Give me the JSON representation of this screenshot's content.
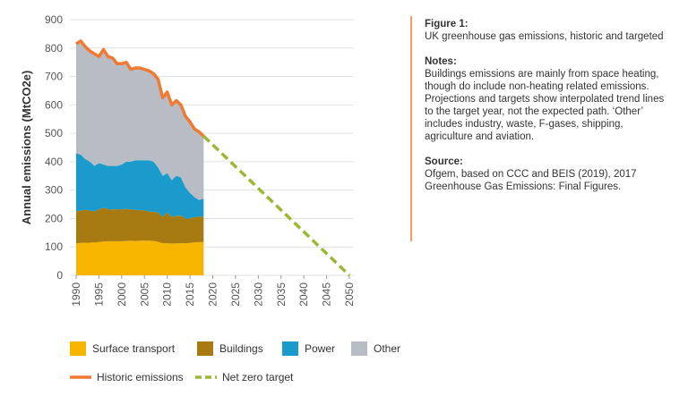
{
  "chart_data": {
    "type": "area",
    "y_label": "Annual emissions (MtCO2e)",
    "x": [
      1990,
      1991,
      1992,
      1993,
      1994,
      1995,
      1996,
      1997,
      1998,
      1999,
      2000,
      2001,
      2002,
      2003,
      2004,
      2005,
      2006,
      2007,
      2008,
      2009,
      2010,
      2011,
      2012,
      2013,
      2014,
      2015,
      2016,
      2017,
      2018
    ],
    "series": [
      {
        "name": "Surface transport",
        "color": "#f7b500",
        "stacked": true,
        "values": [
          113,
          114,
          115,
          115,
          116,
          117,
          119,
          120,
          120,
          120,
          120,
          121,
          122,
          121,
          122,
          122,
          122,
          121,
          118,
          113,
          113,
          112,
          112,
          113,
          113,
          114,
          116,
          117,
          117
        ]
      },
      {
        "name": "Buildings",
        "color": "#a87a12",
        "stacked": true,
        "values": [
          112,
          114,
          115,
          113,
          109,
          115,
          119,
          113,
          112,
          113,
          112,
          113,
          110,
          109,
          108,
          106,
          103,
          102,
          104,
          92,
          109,
          93,
          98,
          97,
          87,
          86,
          89,
          90,
          88
        ]
      },
      {
        "name": "Power",
        "color": "#1a9bcc",
        "stacked": true,
        "values": [
          205,
          197,
          180,
          172,
          160,
          163,
          152,
          152,
          153,
          152,
          158,
          166,
          168,
          175,
          175,
          177,
          180,
          177,
          158,
          145,
          138,
          130,
          140,
          135,
          110,
          90,
          70,
          58,
          65
        ]
      },
      {
        "name": "Other",
        "color": "#b8bcc4",
        "stacked": true,
        "values": [
          385,
          400,
          395,
          390,
          395,
          375,
          405,
          385,
          380,
          360,
          355,
          350,
          325,
          325,
          325,
          320,
          315,
          310,
          310,
          275,
          285,
          265,
          265,
          255,
          250,
          250,
          240,
          240,
          220
        ]
      },
      {
        "name": "Historic emissions",
        "color": "#f07a32",
        "stacked": false,
        "dashed": false,
        "values": [
          815,
          825,
          805,
          790,
          780,
          770,
          795,
          770,
          765,
          745,
          745,
          750,
          725,
          730,
          730,
          725,
          720,
          710,
          690,
          625,
          645,
          600,
          615,
          600,
          560,
          540,
          515,
          505,
          490
        ]
      },
      {
        "name": "Net zero target",
        "color": "#9ab833",
        "stacked": false,
        "dashed": true,
        "x": [
          2018,
          2050
        ],
        "values": [
          490,
          0
        ]
      }
    ],
    "xlim": [
      1990,
      2050
    ],
    "xticks": [
      1990,
      1995,
      2000,
      2005,
      2010,
      2015,
      2020,
      2025,
      2030,
      2035,
      2040,
      2045,
      2050
    ],
    "ylim": [
      0,
      900
    ],
    "yticks": [
      0,
      100,
      200,
      300,
      400,
      500,
      600,
      700,
      800,
      900
    ],
    "grid": true
  },
  "panel": {
    "figure_label": "Figure 1:",
    "caption": "UK greenhouse gas emissions, historic and targeted",
    "notes_heading": "Notes:",
    "notes": "Buildings emissions are mainly from space heating, though do include non-heating related emissions. Projections and targets show interpolated trend lines to the target year, not the expected path. ‘Other’ includes industry, waste, F-gases, shipping, agriculture and aviation.",
    "source_heading": "Source:",
    "source": "Ofgem, based on CCC and BEIS (2019), 2017 Greenhouse Gas Emissions: Final Figures."
  }
}
